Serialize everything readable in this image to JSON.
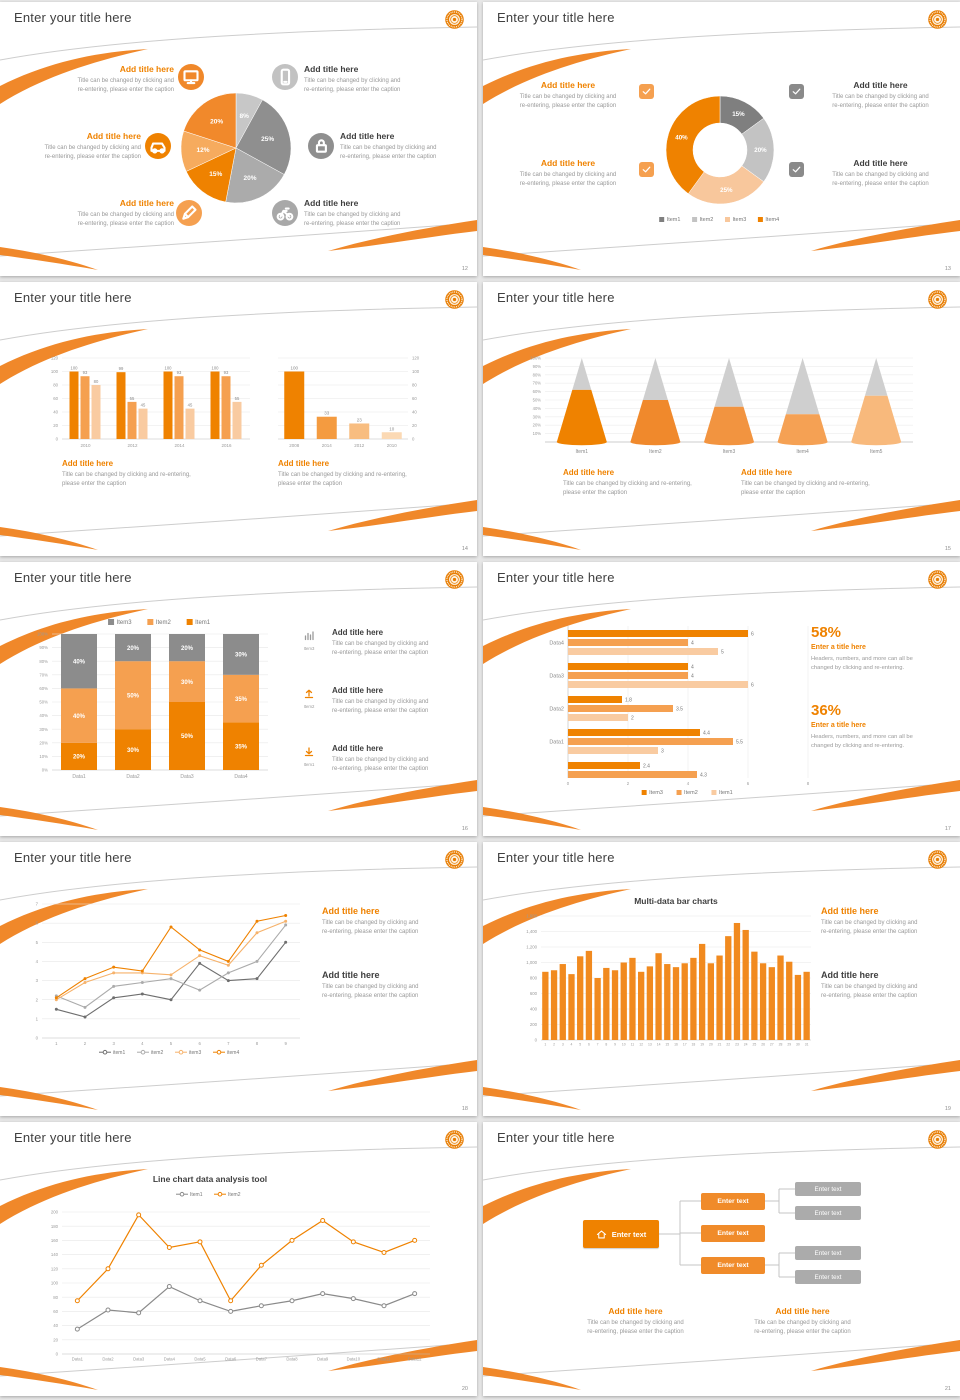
{
  "common": {
    "slide_title": "Enter your title here"
  },
  "strings": {
    "add_title": "Add title here",
    "enter_text": "Enter text",
    "enter_a_title": "Enter a title here",
    "caption_a1": "Title can be changed by clicking and",
    "caption_a2": "re-entering, please enter the caption",
    "caption_b1": "Title can be changed by clicking and re-entering,",
    "caption_b2": "please enter the caption",
    "stat_cap1": "Headers, numbers, and more can all be",
    "stat_cap2": "changed by clicking and re-entering."
  },
  "colors": {
    "orange": "#ef8200",
    "orange_mid": "#f5a050",
    "orange_pale": "#f9cba1",
    "gray_dark": "#6f6f6f",
    "gray_mid": "#a6a6a6",
    "text": "#3f3f3f",
    "caption": "#999999"
  },
  "slides": [
    {
      "page": "12",
      "type": "pie_callouts",
      "left_callouts": [
        {
          "title": "Add title here",
          "icon": "monitor-icon"
        },
        {
          "title": "Add title here",
          "icon": "car-icon"
        },
        {
          "title": "Add title here",
          "icon": "pencil-icon"
        }
      ],
      "right_callouts": [
        {
          "title": "Add title here",
          "icon": "smartphone-icon"
        },
        {
          "title": "Add title here",
          "icon": "lock-icon"
        },
        {
          "title": "Add title here",
          "icon": "bicycle-icon"
        }
      ]
    },
    {
      "page": "13",
      "type": "donut_checks",
      "left_callouts": [
        {
          "title": "Add title here"
        },
        {
          "title": "Add title here"
        }
      ],
      "right_callouts": [
        {
          "title": "Add title here"
        },
        {
          "title": "Add title here"
        }
      ]
    },
    {
      "page": "14",
      "type": "two_bars",
      "callouts": [
        {
          "title": "Add title here"
        },
        {
          "title": "Add title here"
        }
      ]
    },
    {
      "page": "15",
      "type": "cones",
      "callouts": [
        {
          "title": "Add title here"
        },
        {
          "title": "Add title here"
        }
      ]
    },
    {
      "page": "16",
      "type": "stacked",
      "sidebar": [
        {
          "icon": "bar-chart-icon",
          "icon_label": "Item3",
          "title": "Add title here"
        },
        {
          "icon": "upload-icon",
          "icon_label": "Item2",
          "title": "Add title here"
        },
        {
          "icon": "download-icon",
          "icon_label": "Item1",
          "title": "Add title here"
        }
      ]
    },
    {
      "page": "17",
      "type": "hbars_stats",
      "stats": [
        {
          "value": "58%",
          "title": "Enter a title here"
        },
        {
          "value": "36%",
          "title": "Enter a title here"
        }
      ]
    },
    {
      "page": "18",
      "type": "lines_text",
      "callouts": [
        {
          "title": "Add title here",
          "color": "orange"
        },
        {
          "title": "Add title here",
          "color": "dark"
        }
      ]
    },
    {
      "page": "19",
      "type": "bars_text",
      "callouts": [
        {
          "title": "Add title here",
          "color": "orange"
        },
        {
          "title": "Add title here",
          "color": "dark"
        }
      ]
    },
    {
      "page": "20",
      "type": "lines2"
    },
    {
      "page": "21",
      "type": "orgchart",
      "callouts": [
        {
          "title": "Add title here"
        },
        {
          "title": "Add title here"
        }
      ]
    }
  ],
  "chart_data": [
    {
      "slide_page": "12",
      "type": "pie",
      "slices": [
        {
          "label": "8%",
          "value": 8,
          "color": "#c7c7c7"
        },
        {
          "label": "25%",
          "value": 25,
          "color": "#8f8f8f"
        },
        {
          "label": "20%",
          "value": 20,
          "color": "#ababab"
        },
        {
          "label": "15%",
          "value": 15,
          "color": "#ef8200"
        },
        {
          "label": "12%",
          "value": 12,
          "color": "#f6ab5e"
        },
        {
          "label": "20%",
          "value": 20,
          "color": "#f1892b"
        }
      ]
    },
    {
      "slide_page": "13",
      "type": "pie",
      "donut": true,
      "slices": [
        {
          "label": "15%",
          "value": 15,
          "color": "#7f7f7f"
        },
        {
          "label": "20%",
          "value": 20,
          "color": "#c3c3c3"
        },
        {
          "label": "25%",
          "value": 25,
          "color": "#f8c79c"
        },
        {
          "label": "40%",
          "value": 40,
          "color": "#ef8200"
        }
      ],
      "legend": [
        {
          "label": "Item1",
          "color": "#7f7f7f"
        },
        {
          "label": "Item2",
          "color": "#c3c3c3"
        },
        {
          "label": "Item3",
          "color": "#f8c79c"
        },
        {
          "label": "Item4",
          "color": "#ef8200"
        }
      ]
    },
    {
      "slide_page": "14",
      "type": "bar",
      "left": {
        "categories": [
          "2010",
          "2012",
          "2014",
          "2016"
        ],
        "series": [
          {
            "color": "#ef8200",
            "values": [
              100,
              99,
              100,
              100
            ]
          },
          {
            "color": "#f5a050",
            "values": [
              93,
              55,
              93,
              93
            ]
          },
          {
            "color": "#f9cba1",
            "values": [
              80,
              45,
              45,
              55
            ]
          }
        ],
        "ymax": 120,
        "ytick_labels": [
          "0",
          "20",
          "40",
          "60",
          "80",
          "100",
          "120"
        ]
      },
      "right": {
        "categories": [
          "2008",
          "2014",
          "2012",
          "2010"
        ],
        "values": [
          100,
          33,
          23,
          10
        ],
        "colors": [
          "#ef8200",
          "#f49b40",
          "#f8bd80",
          "#fbd9b4"
        ],
        "ymax": 120,
        "ytick_labels": [
          "0",
          "20",
          "40",
          "60",
          "80",
          "100",
          "120"
        ]
      }
    },
    {
      "slide_page": "15",
      "type": "area",
      "subtype": "cone-pyramid",
      "categories": [
        "Item1",
        "Item2",
        "Item3",
        "Item4",
        "Item5"
      ],
      "values_pct": [
        62,
        50,
        42,
        33,
        55
      ],
      "cone_colors": [
        "#ef8200",
        "#f0892c",
        "#f29440",
        "#f5a154",
        "#f8b97c"
      ],
      "gray_color": "#cfcfcf",
      "ytick_labels": [
        "10%",
        "20%",
        "30%",
        "40%",
        "50%",
        "60%",
        "70%",
        "80%",
        "90%",
        "100%"
      ]
    },
    {
      "slide_page": "16",
      "type": "bar",
      "subtype": "stacked-percent",
      "categories": [
        "Data1",
        "Data2",
        "Data3",
        "Data4"
      ],
      "series": [
        {
          "name": "Item1",
          "color": "#ef8200",
          "values": [
            20,
            30,
            50,
            35
          ]
        },
        {
          "name": "Item2",
          "color": "#f5a050",
          "values": [
            40,
            50,
            30,
            35
          ]
        },
        {
          "name": "Item3",
          "color": "#8c8c8c",
          "values": [
            40,
            20,
            20,
            30
          ]
        }
      ],
      "legend": [
        {
          "label": "Item3",
          "color": "#8c8c8c"
        },
        {
          "label": "Item2",
          "color": "#f5a050"
        },
        {
          "label": "Item1",
          "color": "#ef8200"
        }
      ],
      "ytick_labels": [
        "0%",
        "10%",
        "20%",
        "30%",
        "40%",
        "50%",
        "60%",
        "70%",
        "80%",
        "90%",
        "100%"
      ]
    },
    {
      "slide_page": "17",
      "type": "bar",
      "subtype": "horizontal-grouped",
      "rows": [
        {
          "label": "Data4",
          "values": [
            6,
            4,
            5
          ]
        },
        {
          "label": "Data3",
          "values": [
            4,
            4,
            6
          ]
        },
        {
          "label": "Data2",
          "values": [
            1.8,
            3.5,
            2
          ]
        },
        {
          "label": "Data1",
          "values": [
            4.4,
            5.5,
            3
          ]
        },
        {
          "label": "",
          "values": [
            2.4,
            4.3
          ]
        }
      ],
      "bar_colors": [
        "#ef8200",
        "#f5a050",
        "#f9cba1"
      ],
      "xmax": 8,
      "xtick_labels": [
        "0",
        "2",
        "4",
        "6",
        "8"
      ],
      "legend": [
        {
          "label": "Item3",
          "color": "#ef8200"
        },
        {
          "label": "Item2",
          "color": "#f5a050"
        },
        {
          "label": "Item1",
          "color": "#f9cba1"
        }
      ]
    },
    {
      "slide_page": "18",
      "type": "line",
      "x_labels": [
        "1",
        "2",
        "3",
        "4",
        "5",
        "6",
        "7",
        "8",
        "9"
      ],
      "ymax": 7,
      "ytick_labels": [
        "0",
        "1",
        "2",
        "3",
        "4",
        "5",
        "6",
        "7"
      ],
      "series": [
        {
          "name": "item1",
          "color": "#6e6e6e",
          "values": [
            1.5,
            1.1,
            2.1,
            2.3,
            2.0,
            3.9,
            3.0,
            3.1,
            5.0
          ]
        },
        {
          "name": "item2",
          "color": "#ababab",
          "values": [
            2.2,
            1.6,
            2.7,
            2.9,
            3.1,
            2.5,
            3.4,
            4.0,
            5.9
          ]
        },
        {
          "name": "item3",
          "color": "#f6b26b",
          "values": [
            2.0,
            2.9,
            3.4,
            3.4,
            3.3,
            4.3,
            3.8,
            5.5,
            6.1
          ]
        },
        {
          "name": "item4",
          "color": "#ef8200",
          "values": [
            2.1,
            3.1,
            3.7,
            3.5,
            5.8,
            4.6,
            4.0,
            6.1,
            6.4
          ]
        }
      ]
    },
    {
      "slide_page": "19",
      "type": "bar",
      "title": "Multi-data bar charts",
      "bar_color": "#f18a1f",
      "ymax": 1600,
      "ytick_labels": [
        "0",
        "200",
        "400",
        "600",
        "800",
        "1,000",
        "1,200",
        "1,400",
        "1,600"
      ],
      "x_labels": [
        "1",
        "2",
        "3",
        "4",
        "5",
        "6",
        "7",
        "8",
        "9",
        "10",
        "11",
        "12",
        "13",
        "14",
        "15",
        "16",
        "17",
        "18",
        "19",
        "20",
        "21",
        "22",
        "23",
        "24",
        "25",
        "26",
        "27",
        "28",
        "29",
        "30",
        "31"
      ],
      "values": [
        880,
        900,
        980,
        850,
        1080,
        1150,
        800,
        930,
        900,
        1000,
        1060,
        880,
        950,
        1120,
        980,
        940,
        990,
        1060,
        1240,
        990,
        1090,
        1340,
        1510,
        1420,
        1140,
        990,
        940,
        1090,
        1010,
        840,
        880
      ]
    },
    {
      "slide_page": "20",
      "type": "line",
      "title": "Line chart data analysis tool",
      "x_labels": [
        "Data1",
        "Data2",
        "Data3",
        "Data4",
        "Data5",
        "Data6",
        "Data7",
        "Data8",
        "Data9",
        "Data10",
        "Data11",
        "Data12"
      ],
      "ymax": 200,
      "ytick_labels": [
        "0",
        "20",
        "40",
        "60",
        "80",
        "100",
        "120",
        "140",
        "160",
        "180",
        "200"
      ],
      "series": [
        {
          "name": "Item1",
          "color": "#8a8a8a",
          "values": [
            35,
            62,
            58,
            95,
            75,
            60,
            68,
            75,
            85,
            78,
            68,
            85
          ]
        },
        {
          "name": "Item2",
          "color": "#ef8200",
          "values": [
            75,
            120,
            196,
            150,
            158,
            75,
            125,
            160,
            188,
            158,
            143,
            160
          ]
        }
      ]
    },
    {
      "slide_page": "21",
      "type": "table",
      "subtype": "org-chart",
      "root": {
        "label": "Enter text",
        "icon": "home-icon"
      },
      "branches": [
        {
          "label": "Enter text",
          "children": [
            "Enter text",
            "Enter text"
          ]
        },
        {
          "label": "Enter text",
          "children": []
        },
        {
          "label": "Enter text",
          "children": [
            "Enter text",
            "Enter text"
          ]
        }
      ],
      "branch_color": "#f08b2a",
      "child_color": "#ababab"
    }
  ]
}
